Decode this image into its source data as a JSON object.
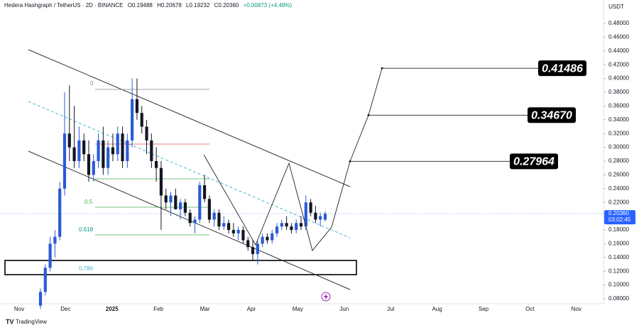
{
  "chart_data": {
    "type": "candlestick",
    "title": "Hedera Hashgraph / TetherUS · 2D · BINANCE",
    "ohlc_text": [
      "O0.19488",
      "H0.20678",
      "L0.19232",
      "C0.20360",
      "+0.00873 (+4.48%)"
    ],
    "y_unit": "USDT",
    "footer": "TradingView",
    "up_color": "#2a5bd7",
    "down_color": "#131722",
    "x_labels": [
      "Nov",
      "Dec",
      "2025",
      "Feb",
      "Mar",
      "Apr",
      "May",
      "Jun",
      "Jul",
      "Aug",
      "Sep",
      "Oct",
      "Nov"
    ],
    "fib_labels": [
      "0",
      "0.5",
      "0.618",
      "0.786"
    ],
    "ylim": [
      0.06,
      0.5
    ],
    "yticks": [
      {
        "value": 0.08,
        "label": "0.08000"
      },
      {
        "value": 0.1,
        "label": "0.10000"
      },
      {
        "value": 0.12,
        "label": "0.12000"
      },
      {
        "value": 0.14,
        "label": "0.14000"
      },
      {
        "value": 0.16,
        "label": "0.16000"
      },
      {
        "value": 0.18,
        "label": "0.18000"
      },
      {
        "value": 0.2,
        "label": "0.20000"
      },
      {
        "value": 0.22,
        "label": "0.22000"
      },
      {
        "value": 0.24,
        "label": "0.24000"
      },
      {
        "value": 0.26,
        "label": "0.26000"
      },
      {
        "value": 0.28,
        "label": "0.28000"
      },
      {
        "value": 0.3,
        "label": "0.30000"
      },
      {
        "value": 0.32,
        "label": "0.32000"
      },
      {
        "value": 0.34,
        "label": "0.34000"
      },
      {
        "value": 0.36,
        "label": "0.36000"
      },
      {
        "value": 0.38,
        "label": "0.38000"
      },
      {
        "value": 0.4,
        "label": "0.40000"
      },
      {
        "value": 0.42,
        "label": "0.42000"
      },
      {
        "value": 0.44,
        "label": "0.44000"
      },
      {
        "value": 0.46,
        "label": "0.46000"
      },
      {
        "value": 0.48,
        "label": "0.48000"
      }
    ],
    "price_label": {
      "value": 0.2036,
      "label": "0.20360"
    },
    "countdown": "03:02:45",
    "targets": [
      {
        "value": 0.27964,
        "label": "0.27964"
      },
      {
        "value": 0.3467,
        "label": "0.34670"
      },
      {
        "value": 0.41486,
        "label": "0.41486"
      }
    ],
    "open": [
      0.07,
      0.09,
      0.125,
      0.16,
      0.17,
      0.24,
      0.32,
      0.3,
      0.28,
      0.31,
      0.29,
      0.26,
      0.28,
      0.31,
      0.27,
      0.3,
      0.29,
      0.32,
      0.28,
      0.31,
      0.37,
      0.35,
      0.33,
      0.31,
      0.28,
      0.27,
      0.23,
      0.22,
      0.23,
      0.21,
      0.22,
      0.205,
      0.19,
      0.195,
      0.245,
      0.225,
      0.195,
      0.205,
      0.185,
      0.19,
      0.18,
      0.175,
      0.18,
      0.165,
      0.155,
      0.145,
      0.16,
      0.17,
      0.165,
      0.175,
      0.185,
      0.19,
      0.185,
      0.18,
      0.19,
      0.185,
      0.22,
      0.205,
      0.195,
      0.19488
    ],
    "high": [
      0.095,
      0.13,
      0.17,
      0.18,
      0.25,
      0.38,
      0.39,
      0.36,
      0.33,
      0.32,
      0.31,
      0.29,
      0.32,
      0.33,
      0.31,
      0.32,
      0.33,
      0.33,
      0.32,
      0.4,
      0.4,
      0.36,
      0.34,
      0.32,
      0.3,
      0.28,
      0.24,
      0.235,
      0.24,
      0.225,
      0.225,
      0.21,
      0.2,
      0.25,
      0.26,
      0.23,
      0.21,
      0.21,
      0.2,
      0.195,
      0.19,
      0.185,
      0.185,
      0.17,
      0.165,
      0.165,
      0.175,
      0.175,
      0.18,
      0.19,
      0.195,
      0.2,
      0.19,
      0.195,
      0.2,
      0.23,
      0.225,
      0.215,
      0.205,
      0.20678
    ],
    "low": [
      0.065,
      0.085,
      0.12,
      0.14,
      0.165,
      0.23,
      0.28,
      0.27,
      0.27,
      0.28,
      0.25,
      0.25,
      0.27,
      0.26,
      0.26,
      0.28,
      0.28,
      0.27,
      0.27,
      0.3,
      0.34,
      0.32,
      0.29,
      0.27,
      0.25,
      0.18,
      0.21,
      0.2,
      0.21,
      0.195,
      0.2,
      0.185,
      0.175,
      0.19,
      0.22,
      0.19,
      0.185,
      0.18,
      0.18,
      0.175,
      0.17,
      0.165,
      0.16,
      0.15,
      0.135,
      0.13,
      0.155,
      0.16,
      0.16,
      0.17,
      0.18,
      0.18,
      0.175,
      0.175,
      0.18,
      0.18,
      0.2,
      0.19,
      0.185,
      0.19232
    ],
    "close": [
      0.09,
      0.125,
      0.16,
      0.17,
      0.24,
      0.32,
      0.3,
      0.28,
      0.31,
      0.29,
      0.26,
      0.28,
      0.31,
      0.27,
      0.3,
      0.29,
      0.32,
      0.28,
      0.31,
      0.37,
      0.35,
      0.33,
      0.31,
      0.28,
      0.27,
      0.23,
      0.22,
      0.23,
      0.21,
      0.22,
      0.205,
      0.19,
      0.195,
      0.245,
      0.225,
      0.195,
      0.205,
      0.185,
      0.19,
      0.18,
      0.175,
      0.18,
      0.165,
      0.155,
      0.145,
      0.16,
      0.17,
      0.165,
      0.175,
      0.185,
      0.19,
      0.185,
      0.18,
      0.19,
      0.185,
      0.22,
      0.205,
      0.195,
      0.2,
      0.2036
    ]
  }
}
